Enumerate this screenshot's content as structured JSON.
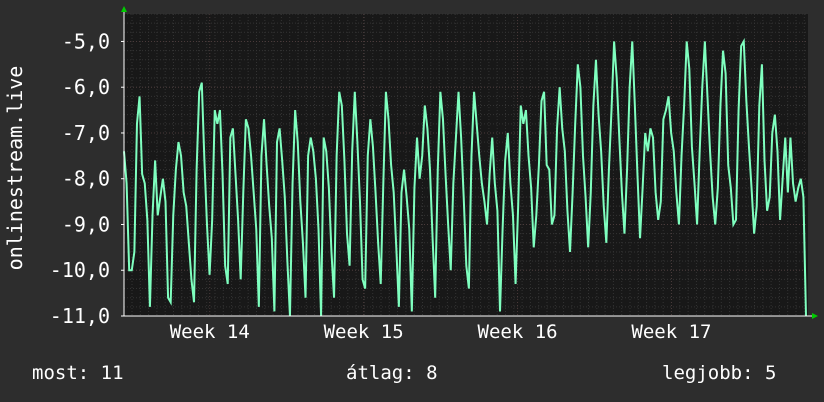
{
  "chart_data": {
    "type": "line",
    "ylabel": "onlinestream.live",
    "y_ticks": [
      "-5,0",
      "-6,0",
      "-7,0",
      "-8,0",
      "-9,0",
      "-10,0",
      "-11,0"
    ],
    "y_tick_values": [
      -5,
      -6,
      -7,
      -8,
      -9,
      -10,
      -11
    ],
    "ylim": [
      -11,
      -4.4
    ],
    "x_tick_labels": [
      "Week 14",
      "Week 15",
      "Week 16",
      "Week 17"
    ],
    "x_tick_fractions": [
      0.235,
      0.46,
      0.685,
      0.91
    ],
    "grid": true,
    "colors": {
      "background": "#2d2d2d",
      "plot": "#181818",
      "grid_major": "#4a3a3a",
      "grid_minor": "#333333",
      "line": "#7fffbf",
      "axis": "#ffffff",
      "arrow": "#00cc00"
    },
    "series": [
      {
        "values": [
          -7.4,
          -8.1,
          -10.0,
          -10.0,
          -9.6,
          -6.8,
          -6.2,
          -7.9,
          -8.1,
          -8.9,
          -10.8,
          -8.8,
          -7.6,
          -8.8,
          -8.4,
          -8.0,
          -8.5,
          -10.6,
          -10.7,
          -8.8,
          -7.8,
          -7.2,
          -7.5,
          -8.3,
          -8.6,
          -9.4,
          -10.2,
          -10.7,
          -7.8,
          -6.1,
          -5.9,
          -7.6,
          -9.0,
          -10.1,
          -8.9,
          -6.5,
          -6.8,
          -6.5,
          -7.9,
          -9.9,
          -10.3,
          -7.1,
          -6.9,
          -7.9,
          -8.9,
          -10.2,
          -8.3,
          -6.7,
          -6.9,
          -7.5,
          -8.3,
          -9.1,
          -10.8,
          -7.5,
          -6.7,
          -7.7,
          -8.6,
          -9.3,
          -10.9,
          -7.2,
          -6.9,
          -7.6,
          -8.4,
          -9.8,
          -11.0,
          -8.1,
          -6.5,
          -7.2,
          -8.5,
          -9.4,
          -10.6,
          -7.5,
          -7.1,
          -7.4,
          -8.0,
          -9.1,
          -11.0,
          -7.1,
          -7.4,
          -8.2,
          -9.6,
          -10.6,
          -7.5,
          -6.1,
          -6.4,
          -7.6,
          -9.2,
          -9.9,
          -7.4,
          -6.1,
          -7.2,
          -8.5,
          -10.2,
          -10.4,
          -7.5,
          -6.7,
          -7.3,
          -8.3,
          -9.4,
          -10.3,
          -8.1,
          -6.1,
          -6.7,
          -7.7,
          -8.3,
          -9.5,
          -10.8,
          -8.3,
          -7.8,
          -8.4,
          -9.1,
          -10.9,
          -8.2,
          -7.1,
          -8.0,
          -7.5,
          -6.4,
          -6.9,
          -7.8,
          -9.3,
          -10.6,
          -7.8,
          -6.1,
          -6.7,
          -7.9,
          -9.0,
          -10.0,
          -8.1,
          -7.1,
          -6.1,
          -7.1,
          -8.4,
          -9.9,
          -10.4,
          -7.5,
          -6.1,
          -6.8,
          -7.5,
          -8.1,
          -8.5,
          -9.0,
          -7.9,
          -7.1,
          -8.1,
          -8.7,
          -10.9,
          -9.1,
          -7.6,
          -7.0,
          -8.1,
          -8.8,
          -10.3,
          -8.6,
          -6.4,
          -6.8,
          -6.5,
          -7.5,
          -8.2,
          -9.5,
          -8.8,
          -7.7,
          -6.3,
          -6.1,
          -7.7,
          -7.8,
          -9.0,
          -8.8,
          -6.9,
          -6.0,
          -6.9,
          -7.4,
          -8.7,
          -9.6,
          -8.3,
          -6.8,
          -5.5,
          -6.0,
          -7.5,
          -8.4,
          -9.5,
          -8.3,
          -6.4,
          -5.4,
          -6.6,
          -7.4,
          -8.6,
          -9.4,
          -7.8,
          -6.5,
          -5.0,
          -5.8,
          -7.1,
          -8.3,
          -9.2,
          -7.8,
          -6.0,
          -5.0,
          -6.4,
          -7.9,
          -9.3,
          -8.2,
          -7.0,
          -7.4,
          -6.9,
          -7.1,
          -8.3,
          -8.9,
          -8.5,
          -6.7,
          -6.5,
          -6.2,
          -7.0,
          -7.4,
          -8.3,
          -9.0,
          -7.5,
          -6.4,
          -5.0,
          -5.6,
          -7.3,
          -8.1,
          -9.0,
          -7.4,
          -6.0,
          -5.0,
          -6.2,
          -7.4,
          -8.4,
          -9.0,
          -8.2,
          -6.4,
          -5.2,
          -5.7,
          -7.7,
          -8.2,
          -9.0,
          -8.9,
          -6.5,
          -5.1,
          -5.0,
          -6.3,
          -7.3,
          -8.2,
          -9.2,
          -8.6,
          -6.4,
          -5.5,
          -7.6,
          -8.7,
          -8.4,
          -7.0,
          -6.6,
          -7.4,
          -8.9,
          -8.0,
          -7.1,
          -8.3,
          -7.1,
          -8.1,
          -8.5,
          -8.2,
          -8.0,
          -8.4,
          -11.0
        ]
      }
    ]
  },
  "footer": {
    "current": "most: 11",
    "average": "átlag: 8",
    "best": "legjobb: 5"
  }
}
